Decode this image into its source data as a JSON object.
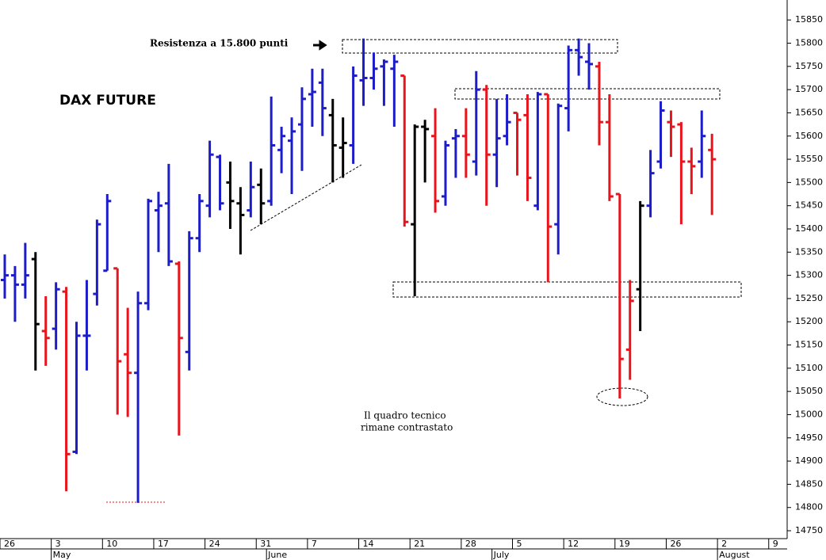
{
  "chart_data": {
    "type": "ohlc",
    "title": "DAX FUTURE",
    "annotations": [
      "Resistenza a 15.800 punti",
      "Il quadro tecnico",
      "rimane contrastato"
    ],
    "categories": [
      "26",
      null,
      null,
      null,
      null,
      "3",
      null,
      null,
      null,
      null,
      "10",
      null,
      null,
      null,
      null,
      "17",
      null,
      null,
      null,
      null,
      "24",
      null,
      null,
      null,
      null,
      "31",
      null,
      null,
      null,
      null,
      "7",
      null,
      null,
      null,
      null,
      "14",
      null,
      null,
      null,
      null,
      "21",
      null,
      null,
      null,
      null,
      "28",
      null,
      null,
      null,
      null,
      "5",
      null,
      null,
      null,
      null,
      "12",
      null,
      null,
      null,
      null,
      "19",
      null,
      null,
      null,
      null,
      "26",
      null,
      null,
      null,
      null,
      "2",
      null,
      null,
      null,
      null,
      "9"
    ],
    "months": [
      null,
      null,
      null,
      null,
      null,
      "May",
      null,
      null,
      null,
      null,
      null,
      null,
      null,
      null,
      null,
      null,
      null,
      null,
      null,
      null,
      null,
      null,
      null,
      null,
      null,
      null,
      "June",
      null,
      null,
      null,
      null,
      null,
      null,
      null,
      null,
      null,
      null,
      null,
      null,
      null,
      null,
      null,
      null,
      null,
      null,
      null,
      null,
      null,
      "July",
      null,
      null,
      null,
      null,
      null,
      null,
      null,
      null,
      null,
      null,
      null,
      null,
      null,
      null,
      null,
      null,
      null,
      null,
      null,
      null,
      null,
      "August",
      null,
      null,
      null,
      null,
      null
    ],
    "open": [
      15290,
      15300,
      15280,
      15335,
      15180,
      15185,
      15265,
      14920,
      15170,
      15260,
      15310,
      15315,
      15130,
      15090,
      15240,
      15440,
      15455,
      15325,
      15135,
      15380,
      15450,
      15555,
      15500,
      15455,
      15440,
      15495,
      15460,
      15570,
      15590,
      15625,
      15690,
      15715,
      15645,
      15575,
      15580,
      15720,
      15725,
      15750,
      15745,
      15730,
      15410,
      15620,
      15600,
      15470,
      15595,
      15600,
      15545,
      15700,
      15560,
      15600,
      15650,
      15645,
      15450,
      15690,
      15410,
      15660,
      15785,
      15760,
      15750,
      15630,
      15475,
      15140,
      15270,
      15450,
      15545,
      15630,
      15625,
      15545,
      15545,
      15570,
      null,
      null,
      null,
      null,
      null,
      null
    ],
    "high": [
      15345,
      15320,
      15370,
      15350,
      15255,
      15285,
      15275,
      15200,
      15290,
      15420,
      15475,
      15315,
      15230,
      15265,
      15465,
      15480,
      15540,
      15330,
      15395,
      15475,
      15590,
      15560,
      15545,
      15490,
      15545,
      15530,
      15685,
      15620,
      15640,
      15705,
      15745,
      15745,
      15680,
      15640,
      15750,
      15810,
      15780,
      15765,
      15775,
      15730,
      15625,
      15635,
      15660,
      15590,
      15615,
      15660,
      15740,
      15710,
      15680,
      15690,
      15650,
      15690,
      15695,
      15690,
      15670,
      15795,
      15810,
      15800,
      15760,
      15690,
      15475,
      15290,
      15460,
      15570,
      15675,
      15655,
      15630,
      15575,
      15655,
      15605,
      null,
      null,
      null,
      null,
      null,
      null
    ],
    "low": [
      15250,
      15200,
      15250,
      15095,
      15105,
      15140,
      14835,
      14915,
      15095,
      15235,
      15310,
      15000,
      14995,
      14810,
      15225,
      15350,
      15320,
      14955,
      15095,
      15350,
      15425,
      15440,
      15400,
      15345,
      15425,
      15410,
      15450,
      15520,
      15475,
      15525,
      15620,
      15600,
      15500,
      15510,
      15540,
      15665,
      15700,
      15665,
      15620,
      15405,
      15255,
      15500,
      15435,
      15450,
      15510,
      15510,
      15515,
      15450,
      15490,
      15580,
      15515,
      15460,
      15440,
      15285,
      15345,
      15610,
      15730,
      15700,
      15580,
      15460,
      15035,
      15075,
      15180,
      15425,
      15530,
      15555,
      15410,
      15475,
      15510,
      15430,
      null,
      null,
      null,
      null,
      null,
      null
    ],
    "close": [
      15300,
      15280,
      15300,
      15195,
      15165,
      15270,
      14915,
      15170,
      15170,
      15410,
      15460,
      15115,
      15090,
      15240,
      15460,
      15450,
      15330,
      15165,
      15380,
      15460,
      15560,
      15455,
      15460,
      15430,
      15490,
      15455,
      15580,
      15600,
      15610,
      15680,
      15695,
      15660,
      15580,
      15585,
      15730,
      15725,
      15745,
      15760,
      15760,
      15415,
      15620,
      15615,
      15460,
      15580,
      15600,
      15560,
      15700,
      15560,
      15595,
      15630,
      15635,
      15510,
      15690,
      15405,
      15665,
      15785,
      15770,
      15755,
      15630,
      15470,
      15120,
      15245,
      15450,
      15520,
      15655,
      15620,
      15545,
      15535,
      15600,
      15550,
      null,
      null,
      null,
      null,
      null,
      null
    ],
    "colors": [
      "#1c1cc8",
      "#1c1cc8",
      "#1c1cc8",
      "#000000",
      "#e8141c",
      "#1c1cc8",
      "#e8141c",
      "#1c1cc8",
      "#1c1cc8",
      "#1c1cc8",
      "#1c1cc8",
      "#e8141c",
      "#e8141c",
      "#1c1cc8",
      "#1c1cc8",
      "#1c1cc8",
      "#1c1cc8",
      "#e8141c",
      "#1c1cc8",
      "#1c1cc8",
      "#1c1cc8",
      "#1c1cc8",
      "#000000",
      "#000000",
      "#1c1cc8",
      "#000000",
      "#1c1cc8",
      "#1c1cc8",
      "#1c1cc8",
      "#1c1cc8",
      "#1c1cc8",
      "#1c1cc8",
      "#000000",
      "#000000",
      "#1c1cc8",
      "#1c1cc8",
      "#1c1cc8",
      "#1c1cc8",
      "#1c1cc8",
      "#e8141c",
      "#000000",
      "#000000",
      "#e8141c",
      "#1c1cc8",
      "#1c1cc8",
      "#e8141c",
      "#1c1cc8",
      "#e8141c",
      "#1c1cc8",
      "#1c1cc8",
      "#e8141c",
      "#e8141c",
      "#1c1cc8",
      "#e8141c",
      "#1c1cc8",
      "#1c1cc8",
      "#1c1cc8",
      "#1c1cc8",
      "#e8141c",
      "#e8141c",
      "#e8141c",
      "#e8141c",
      "#000000",
      "#1c1cc8",
      "#1c1cc8",
      "#e8141c",
      "#e8141c",
      "#e8141c",
      "#1c1cc8",
      "#e8141c",
      null,
      null,
      null,
      null,
      null,
      null
    ],
    "ylim": [
      14733,
      15893
    ],
    "yticks": [
      14750,
      14800,
      14850,
      14900,
      14950,
      15000,
      15050,
      15100,
      15150,
      15200,
      15250,
      15300,
      15350,
      15400,
      15450,
      15500,
      15550,
      15600,
      15650,
      15700,
      15750,
      15800,
      15850
    ]
  }
}
